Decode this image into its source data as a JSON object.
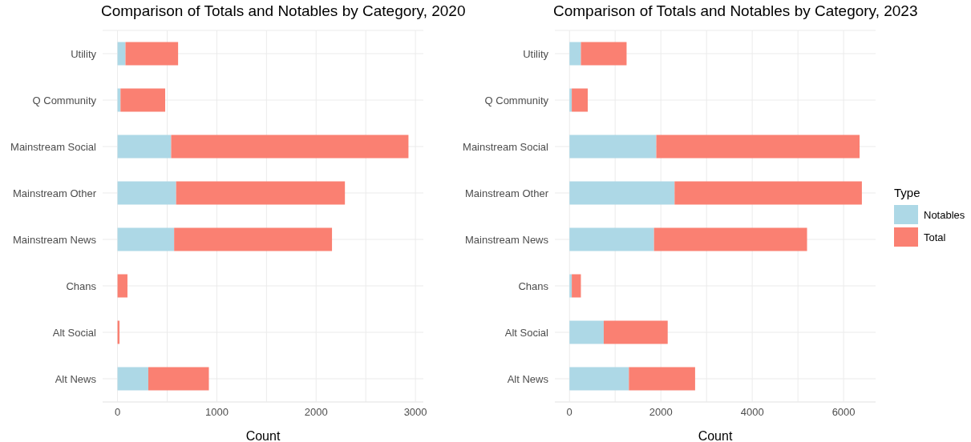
{
  "chart_data": [
    {
      "type": "bar",
      "orientation": "horizontal",
      "stacked": true,
      "title": "Comparison of Totals and Notables by Category, 2020",
      "xlabel": "Count",
      "legend_title": "Type",
      "legend": "right",
      "categories": [
        "Utility",
        "Q Community",
        "Mainstream Social",
        "Mainstream Other",
        "Mainstream News",
        "Chans",
        "Alt Social",
        "Alt News"
      ],
      "series": [
        {
          "name": "Notables",
          "color": "#add8e6",
          "values": [
            80,
            30,
            540,
            590,
            570,
            0,
            0,
            310
          ]
        },
        {
          "name": "Total",
          "color": "#fa8072",
          "values": [
            530,
            450,
            2390,
            1700,
            1590,
            100,
            20,
            610
          ]
        }
      ],
      "xlim": [
        -150,
        3080
      ],
      "xticks": [
        0,
        {
          "value": 500,
          "label": null
        },
        1000,
        {
          "value": 1500,
          "label": null
        },
        2000,
        {
          "value": 2500,
          "label": null
        },
        3000
      ],
      "grid": true
    },
    {
      "type": "bar",
      "orientation": "horizontal",
      "stacked": true,
      "title": "Comparison of Totals and Notables by Category, 2023",
      "xlabel": "Count",
      "categories": [
        "Utility",
        "Q Community",
        "Mainstream Social",
        "Mainstream Other",
        "Mainstream News",
        "Chans",
        "Alt Social",
        "Alt News"
      ],
      "series": [
        {
          "color": "#add8e6",
          "values": [
            250,
            50,
            1900,
            2300,
            1850,
            50,
            750,
            1300
          ]
        },
        {
          "color": "#fa8072",
          "values": [
            1000,
            350,
            4450,
            4100,
            3350,
            200,
            1400,
            1450
          ]
        }
      ],
      "xlim": [
        -320,
        6700
      ],
      "xticks": [
        0,
        {
          "value": 1000,
          "label": null
        },
        2000,
        {
          "value": 3000,
          "label": null
        },
        4000,
        {
          "value": 5000,
          "label": null
        },
        6000
      ],
      "grid": true
    }
  ]
}
